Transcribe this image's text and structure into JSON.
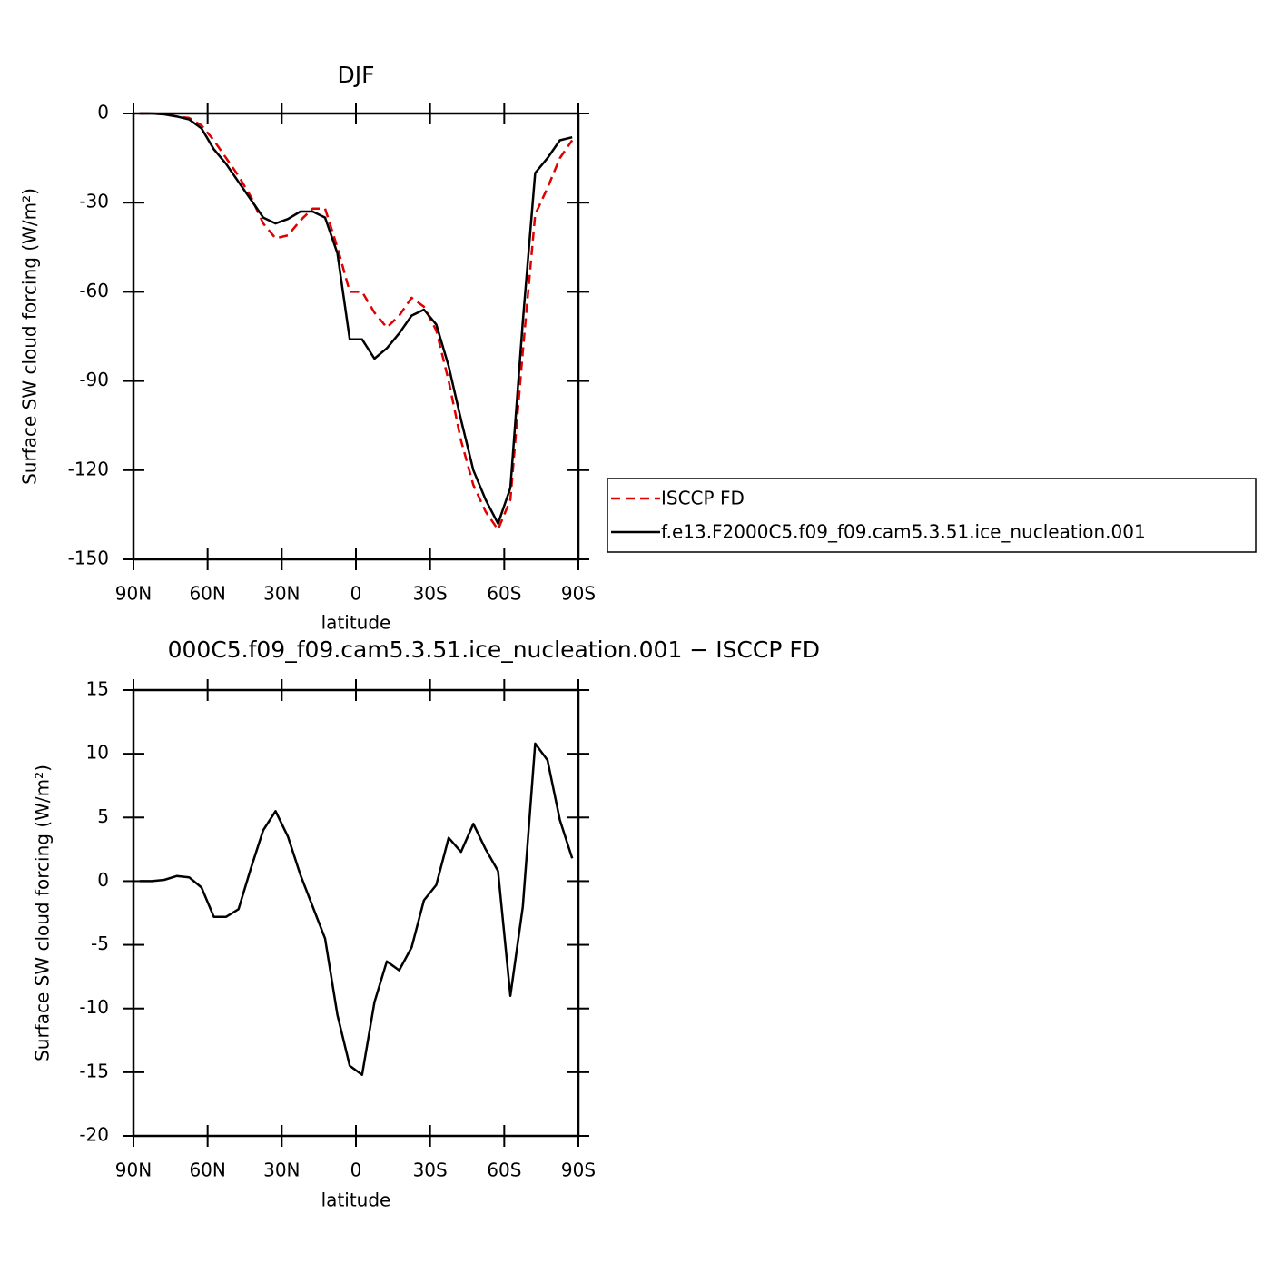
{
  "chart_data": [
    {
      "type": "line",
      "title": "DJF",
      "xlabel": "latitude",
      "ylabel": "Surface SW cloud forcing (W/m²)",
      "x": [
        87.5,
        82.5,
        77.5,
        72.5,
        67.5,
        62.5,
        57.5,
        52.5,
        47.5,
        42.5,
        37.5,
        32.5,
        27.5,
        22.5,
        17.5,
        12.5,
        7.5,
        2.5,
        -2.5,
        -7.5,
        -12.5,
        -17.5,
        -22.5,
        -27.5,
        -32.5,
        -37.5,
        -42.5,
        -47.5,
        -52.5,
        -57.5,
        -62.5,
        -67.5,
        -72.5,
        -77.5,
        -82.5,
        -87.5
      ],
      "series": [
        {
          "name": "ISCCP FD",
          "color": "#e00000",
          "style": "dashed",
          "values": [
            0,
            0,
            -0.3,
            -1,
            -1.5,
            -4,
            -9,
            -15,
            -21,
            -28,
            -37,
            -42,
            -41,
            -36,
            -32,
            -32,
            -45,
            -60,
            -60,
            -67,
            -72,
            -68,
            -62,
            -65,
            -73,
            -90,
            -110,
            -125,
            -134,
            -140,
            -130,
            -80,
            -34,
            -25,
            -15,
            -9
          ]
        },
        {
          "name": "f.e13.F2000C5.f09_f09.cam5.3.51.ice_nucleation.001",
          "color": "#000000",
          "style": "solid",
          "values": [
            0,
            0,
            -0.3,
            -1,
            -2,
            -5,
            -12,
            -17,
            -23,
            -29,
            -35,
            -37,
            -35.5,
            -33,
            -33,
            -35,
            -47,
            -76,
            -76,
            -82.5,
            -79,
            -74,
            -68,
            -66,
            -71,
            -85,
            -103,
            -120,
            -130,
            -138,
            -126,
            -70,
            -20,
            -15,
            -9,
            -8
          ]
        }
      ],
      "xlim": [
        90,
        -90
      ],
      "xticks": [
        {
          "value": 90,
          "label": "90N"
        },
        {
          "value": 60,
          "label": "60N"
        },
        {
          "value": 30,
          "label": "30N"
        },
        0,
        {
          "value": -30,
          "label": "30S"
        },
        {
          "value": -60,
          "label": "60S"
        },
        {
          "value": -90,
          "label": "90S"
        }
      ],
      "ylim": [
        -150,
        0
      ],
      "yticks": [
        0,
        -30,
        -60,
        -90,
        -120,
        -150
      ],
      "legend": "right"
    },
    {
      "type": "line",
      "title": "000C5.f09_f09.cam5.3.51.ice_nucleation.001 − ISCCP FD",
      "xlabel": "latitude",
      "ylabel": "Surface SW cloud forcing (W/m²)",
      "x": [
        87.5,
        82.5,
        77.5,
        72.5,
        67.5,
        62.5,
        57.5,
        52.5,
        47.5,
        42.5,
        37.5,
        32.5,
        27.5,
        22.5,
        17.5,
        12.5,
        7.5,
        2.5,
        -2.5,
        -7.5,
        -12.5,
        -17.5,
        -22.5,
        -27.5,
        -32.5,
        -37.5,
        -42.5,
        -47.5,
        -52.5,
        -57.5,
        -62.5,
        -67.5,
        -72.5,
        -77.5,
        -82.5,
        -87.5
      ],
      "series": [
        {
          "color": "#000000",
          "style": "solid",
          "values": [
            0,
            0,
            0.1,
            0.4,
            0.3,
            -0.5,
            -2.8,
            -2.8,
            -2.2,
            1.0,
            4,
            5.5,
            3.5,
            0.5,
            -2,
            -4.5,
            -10.5,
            -14.5,
            -15.2,
            -9.5,
            -6.3,
            -7,
            -5.2,
            -1.5,
            -0.3,
            3.4,
            2.3,
            4.5,
            2.5,
            0.8,
            -9,
            -2,
            10.8,
            9.5,
            4.8,
            1.8
          ]
        }
      ],
      "xlim": [
        90,
        -90
      ],
      "xticks": [
        {
          "value": 90,
          "label": "90N"
        },
        {
          "value": 60,
          "label": "60N"
        },
        {
          "value": 30,
          "label": "30N"
        },
        0,
        {
          "value": -30,
          "label": "30S"
        },
        {
          "value": -60,
          "label": "60S"
        },
        {
          "value": -90,
          "label": "90S"
        }
      ],
      "ylim": [
        -20,
        15
      ],
      "yticks": [
        -20,
        -15,
        -10,
        -5,
        0,
        5,
        10,
        15
      ]
    }
  ]
}
